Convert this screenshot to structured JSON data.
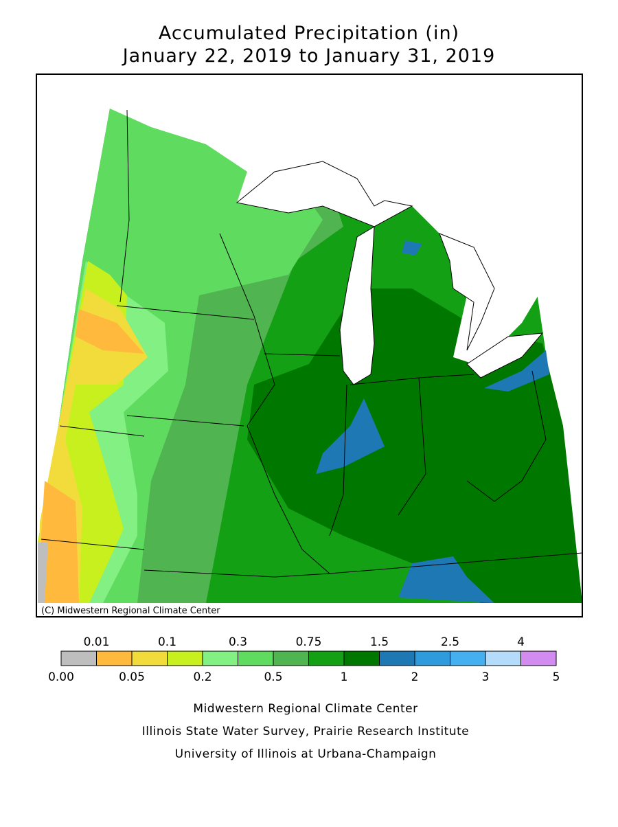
{
  "header": {
    "title": "Accumulated Precipitation (in)",
    "subtitle": "January 22, 2019 to January 31, 2019"
  },
  "map": {
    "credit": "(C) Midwestern Regional Climate Center"
  },
  "legend": {
    "labels": [
      "0.00",
      "0.01",
      "0.05",
      "0.1",
      "0.2",
      "0.3",
      "0.5",
      "0.75",
      "1",
      "1.5",
      "2",
      "2.5",
      "3",
      "4",
      "5"
    ],
    "colors": [
      "#bebebe",
      "#ffb93c",
      "#f2dc3c",
      "#c8f01e",
      "#82f082",
      "#5fdc5f",
      "#50b450",
      "#14a014",
      "#007800",
      "#1e78b4",
      "#2d9bdc",
      "#46aff0",
      "#b4dcfa",
      "#d28cf0"
    ]
  },
  "footer": {
    "lines": [
      "Midwestern Regional Climate Center",
      "Illinois State Water Survey, Prairie Research Institute",
      "University of Illinois at Urbana-Champaign"
    ]
  }
}
